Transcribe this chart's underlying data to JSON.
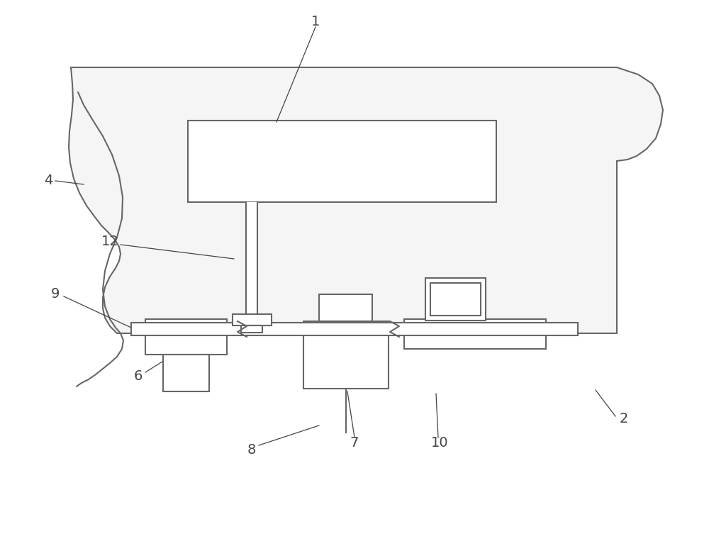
{
  "bg_color": "#ffffff",
  "body_color": "#f5f5f5",
  "line_color": "#666666",
  "label_color": "#444444",
  "fig_width": 10.0,
  "fig_height": 7.77,
  "dpi": 100
}
